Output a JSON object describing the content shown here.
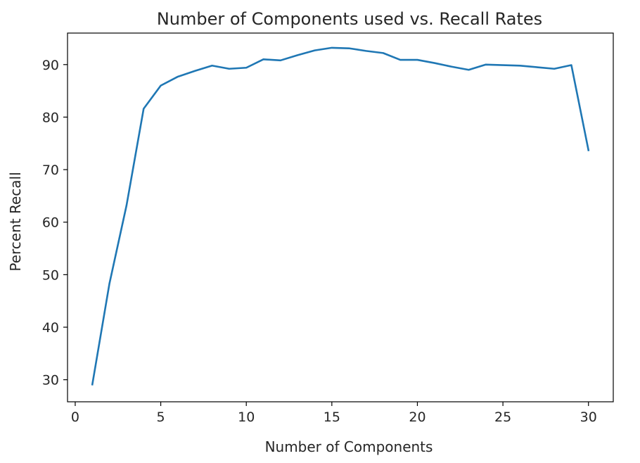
{
  "chart_data": {
    "type": "line",
    "title": "Number of Components used vs. Recall Rates",
    "xlabel": "Number of Components",
    "ylabel": "Percent Recall",
    "xlim": [
      -0.45,
      31.45
    ],
    "ylim": [
      25.8,
      96.0
    ],
    "xticks": [
      0,
      5,
      10,
      15,
      20,
      25,
      30
    ],
    "yticks": [
      30,
      40,
      50,
      60,
      70,
      80,
      90
    ],
    "grid": false,
    "legend": "none",
    "series": [
      {
        "color": "#1f77b4",
        "x": [
          1,
          2,
          3,
          4,
          5,
          6,
          7,
          8,
          9,
          10,
          11,
          12,
          13,
          14,
          15,
          16,
          17,
          18,
          19,
          20,
          21,
          22,
          23,
          24,
          25,
          26,
          27,
          28,
          29,
          30
        ],
        "y": [
          29.1,
          48.3,
          63.2,
          81.6,
          86.0,
          87.7,
          88.8,
          89.8,
          89.2,
          89.4,
          91.0,
          90.8,
          91.8,
          92.7,
          93.2,
          93.1,
          92.6,
          92.2,
          90.9,
          90.9,
          90.3,
          89.6,
          89.0,
          90.0,
          89.9,
          89.8,
          89.5,
          89.2,
          89.9,
          73.7
        ]
      }
    ]
  }
}
